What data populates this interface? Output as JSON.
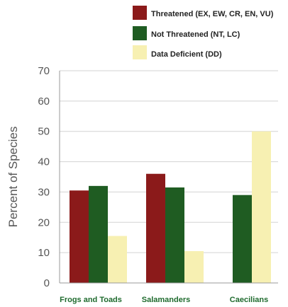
{
  "chart_data": {
    "type": "bar",
    "title": "",
    "xlabel": "",
    "ylabel": "Percent of Species",
    "ylim": [
      0,
      70
    ],
    "yticks": [
      0,
      10,
      20,
      30,
      40,
      50,
      60,
      70
    ],
    "grid": true,
    "legend_placement": "top-right",
    "categories": [
      "Frogs and Toads",
      "Salamanders",
      "Caecilians"
    ],
    "series": [
      {
        "name": "Threatened (EX, EW, CR, EN, VU)",
        "color": "#8b1a1a",
        "values": [
          30.5,
          36,
          0
        ]
      },
      {
        "name": "Not Threatened (NT, LC)",
        "color": "#1f5c22",
        "values": [
          32,
          31.5,
          29
        ]
      },
      {
        "name": "Data Deficient (DD)",
        "color": "#f7f0b2",
        "values": [
          15.5,
          10.5,
          50
        ]
      }
    ]
  }
}
